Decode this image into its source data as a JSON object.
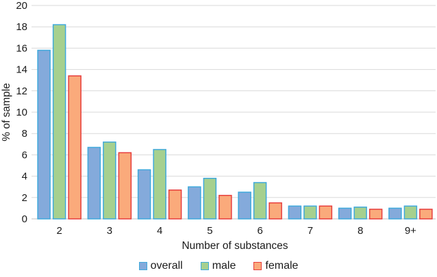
{
  "chart_data": {
    "type": "bar",
    "title": "",
    "xlabel": "Number of substances",
    "ylabel": "% of sample",
    "ylim": [
      0,
      20
    ],
    "yticks": [
      0,
      2,
      4,
      6,
      8,
      10,
      12,
      14,
      16,
      18,
      20
    ],
    "grid": true,
    "legend_position": "bottom",
    "categories": [
      "2",
      "3",
      "4",
      "5",
      "6",
      "7",
      "8",
      "9+"
    ],
    "series": [
      {
        "name": "overall",
        "fill": "#84AADB",
        "stroke": "#3FA9DC",
        "values": [
          15.8,
          6.7,
          4.6,
          3.0,
          2.5,
          1.2,
          1.0,
          1.0
        ]
      },
      {
        "name": "male",
        "fill": "#A6D08F",
        "stroke": "#3FA9DC",
        "values": [
          18.2,
          7.2,
          6.5,
          3.8,
          3.4,
          1.2,
          1.1,
          1.2
        ]
      },
      {
        "name": "female",
        "fill": "#FAAA7B",
        "stroke": "#E73C3C",
        "values": [
          13.4,
          6.2,
          2.7,
          2.2,
          1.5,
          1.2,
          0.9,
          0.9
        ]
      }
    ]
  },
  "colors": {
    "gridline": "#D9D9D9",
    "axis_line": "#BFBFBF",
    "text": "#1A1A1A",
    "background": "#FFFFFF"
  }
}
